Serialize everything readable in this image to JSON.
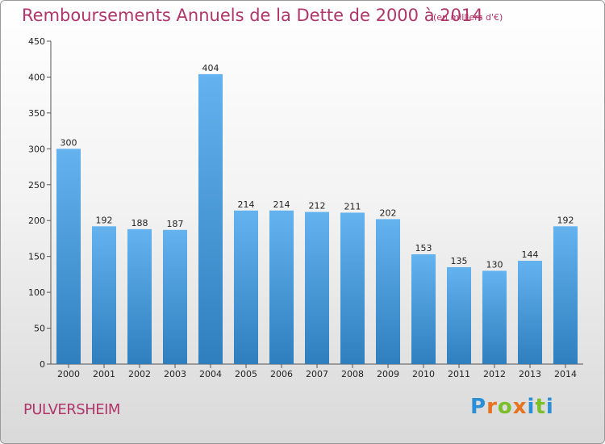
{
  "title": "Remboursements Annuels de la Dette de 2000 à 2014",
  "title_unit": "(en milliers d'€)",
  "commune": "PULVERSHEIM",
  "logo": {
    "text": "Proxiti",
    "letters": [
      "P",
      "r",
      "o",
      "x",
      "i",
      "t",
      "i"
    ],
    "letter_colors": [
      "#2a8fd6",
      "#e8731e",
      "#7bbf2a",
      "#e8731e",
      "#2a8fd6",
      "#7bbf2a",
      "#2a8fd6"
    ]
  },
  "colors": {
    "bar_top": "#64b2ee",
    "bar_bottom": "#2f7fbf",
    "title": "#b0356a"
  },
  "chart_data": {
    "type": "bar",
    "categories": [
      "2000",
      "2001",
      "2002",
      "2003",
      "2004",
      "2005",
      "2006",
      "2007",
      "2008",
      "2009",
      "2010",
      "2011",
      "2012",
      "2013",
      "2014"
    ],
    "values": [
      300,
      192,
      188,
      187,
      404,
      214,
      214,
      212,
      211,
      202,
      153,
      135,
      130,
      144,
      192
    ],
    "value_labels": [
      "300",
      "192",
      "188",
      "187",
      "404",
      "214",
      "214",
      "212",
      "211",
      "202",
      "153",
      "135",
      "130",
      "144",
      "192"
    ],
    "title": "Remboursements Annuels de la Dette de 2000 à 2014",
    "ylim": [
      0,
      450
    ],
    "yticks": [
      0,
      50,
      100,
      150,
      200,
      250,
      300,
      350,
      400,
      450
    ],
    "ytick_labels": [
      "0",
      "50",
      "100",
      "150",
      "200",
      "250",
      "300",
      "350",
      "400",
      "450"
    ],
    "grid": false,
    "legend": "none"
  }
}
